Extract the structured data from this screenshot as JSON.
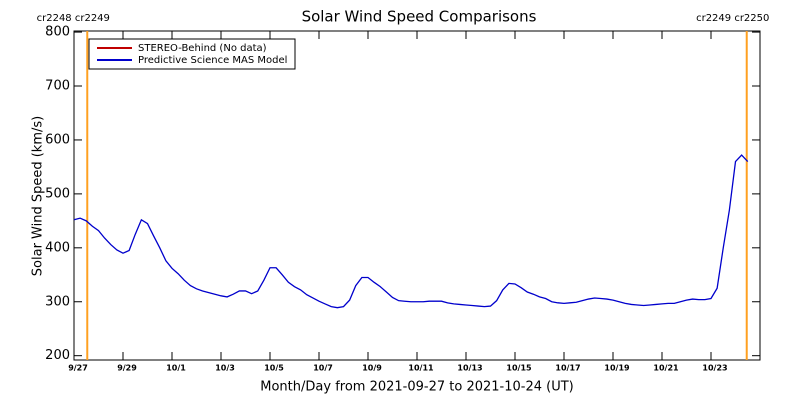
{
  "chart_data": {
    "type": "line",
    "title": "Solar Wind Speed Comparisons",
    "x_label": "Month/Day from 2021-09-27 to 2021-10-24 (UT)",
    "y_label": "Solar Wind Speed (km/s)",
    "xlim": [
      "2021-09-27T00:00",
      "2021-10-25T00:00"
    ],
    "ylim": [
      192,
      802
    ],
    "yticks": [
      200,
      300,
      400,
      500,
      600,
      700,
      800
    ],
    "xticks": [
      {
        "value": "2021-09-27T00:00",
        "label": "9/27"
      },
      {
        "value": "2021-09-29T00:00",
        "label": "9/29"
      },
      {
        "value": "2021-10-01T00:00",
        "label": "10/1"
      },
      {
        "value": "2021-10-03T00:00",
        "label": "10/3"
      },
      {
        "value": "2021-10-05T00:00",
        "label": "10/5"
      },
      {
        "value": "2021-10-07T00:00",
        "label": "10/7"
      },
      {
        "value": "2021-10-09T00:00",
        "label": "10/9"
      },
      {
        "value": "2021-10-11T00:00",
        "label": "10/11"
      },
      {
        "value": "2021-10-13T00:00",
        "label": "10/13"
      },
      {
        "value": "2021-10-15T00:00",
        "label": "10/15"
      },
      {
        "value": "2021-10-17T00:00",
        "label": "10/17"
      },
      {
        "value": "2021-10-19T00:00",
        "label": "10/19"
      },
      {
        "value": "2021-10-21T00:00",
        "label": "10/21"
      },
      {
        "value": "2021-10-23T00:00",
        "label": "10/23"
      }
    ],
    "annotations": [
      {
        "x": "2021-09-27T13:00",
        "label": "cr2248 cr2249",
        "color": "#ffa020"
      },
      {
        "x": "2021-10-24T11:00",
        "label": "cr2249 cr2250",
        "color": "#ffa020"
      }
    ],
    "legend": "upper left",
    "x": [
      "2021-09-27T00:00",
      "2021-09-27T06:00",
      "2021-09-27T12:00",
      "2021-09-27T18:00",
      "2021-09-28T00:00",
      "2021-09-28T06:00",
      "2021-09-28T12:00",
      "2021-09-28T18:00",
      "2021-09-29T00:00",
      "2021-09-29T06:00",
      "2021-09-29T12:00",
      "2021-09-29T18:00",
      "2021-09-30T00:00",
      "2021-09-30T06:00",
      "2021-09-30T12:00",
      "2021-09-30T18:00",
      "2021-10-01T00:00",
      "2021-10-01T06:00",
      "2021-10-01T12:00",
      "2021-10-01T18:00",
      "2021-10-02T00:00",
      "2021-10-02T06:00",
      "2021-10-02T12:00",
      "2021-10-02T18:00",
      "2021-10-03T00:00",
      "2021-10-03T06:00",
      "2021-10-03T12:00",
      "2021-10-03T18:00",
      "2021-10-04T00:00",
      "2021-10-04T06:00",
      "2021-10-04T12:00",
      "2021-10-04T18:00",
      "2021-10-05T00:00",
      "2021-10-05T06:00",
      "2021-10-05T12:00",
      "2021-10-05T18:00",
      "2021-10-06T00:00",
      "2021-10-06T06:00",
      "2021-10-06T12:00",
      "2021-10-06T18:00",
      "2021-10-07T00:00",
      "2021-10-07T06:00",
      "2021-10-07T12:00",
      "2021-10-07T18:00",
      "2021-10-08T00:00",
      "2021-10-08T06:00",
      "2021-10-08T12:00",
      "2021-10-08T18:00",
      "2021-10-09T00:00",
      "2021-10-09T06:00",
      "2021-10-09T12:00",
      "2021-10-09T18:00",
      "2021-10-10T00:00",
      "2021-10-10T06:00",
      "2021-10-10T12:00",
      "2021-10-10T18:00",
      "2021-10-11T00:00",
      "2021-10-11T06:00",
      "2021-10-11T12:00",
      "2021-10-11T18:00",
      "2021-10-12T00:00",
      "2021-10-12T06:00",
      "2021-10-12T12:00",
      "2021-10-12T18:00",
      "2021-10-13T00:00",
      "2021-10-13T06:00",
      "2021-10-13T12:00",
      "2021-10-13T18:00",
      "2021-10-14T00:00",
      "2021-10-14T06:00",
      "2021-10-14T12:00",
      "2021-10-14T18:00",
      "2021-10-15T00:00",
      "2021-10-15T06:00",
      "2021-10-15T12:00",
      "2021-10-15T18:00",
      "2021-10-16T00:00",
      "2021-10-16T06:00",
      "2021-10-16T12:00",
      "2021-10-16T18:00",
      "2021-10-17T00:00",
      "2021-10-17T06:00",
      "2021-10-17T12:00",
      "2021-10-17T18:00",
      "2021-10-18T00:00",
      "2021-10-18T06:00",
      "2021-10-18T12:00",
      "2021-10-18T18:00",
      "2021-10-19T00:00",
      "2021-10-19T06:00",
      "2021-10-19T12:00",
      "2021-10-19T18:00",
      "2021-10-20T00:00",
      "2021-10-20T06:00",
      "2021-10-20T12:00",
      "2021-10-20T18:00",
      "2021-10-21T00:00",
      "2021-10-21T06:00",
      "2021-10-21T12:00",
      "2021-10-21T18:00",
      "2021-10-22T00:00",
      "2021-10-22T06:00",
      "2021-10-22T12:00",
      "2021-10-22T18:00",
      "2021-10-23T00:00",
      "2021-10-23T06:00",
      "2021-10-23T12:00",
      "2021-10-23T18:00",
      "2021-10-24T00:00",
      "2021-10-24T06:00",
      "2021-10-24T12:00"
    ],
    "series": [
      {
        "name": "STEREO-Behind (No data)",
        "color": "#c00000",
        "values": [
          null,
          null,
          null,
          null,
          null,
          null,
          null,
          null,
          null,
          null,
          null,
          null,
          null,
          null,
          null,
          null,
          null,
          null,
          null,
          null,
          null,
          null,
          null,
          null,
          null,
          null,
          null,
          null,
          null,
          null,
          null,
          null,
          null,
          null,
          null,
          null,
          null,
          null,
          null,
          null,
          null,
          null,
          null,
          null,
          null,
          null,
          null,
          null,
          null,
          null,
          null,
          null,
          null,
          null,
          null,
          null,
          null,
          null,
          null,
          null,
          null,
          null,
          null,
          null,
          null,
          null,
          null,
          null,
          null,
          null,
          null,
          null,
          null,
          null,
          null,
          null,
          null,
          null,
          null,
          null,
          null,
          null,
          null,
          null,
          null,
          null,
          null,
          null,
          null,
          null,
          null,
          null,
          null,
          null,
          null,
          null,
          null,
          null,
          null,
          null,
          null,
          null,
          null,
          null,
          null,
          null,
          null,
          null,
          null,
          null,
          null
        ]
      },
      {
        "name": "Predictive Science MAS Model",
        "color": "#0000cc",
        "values": [
          452,
          455,
          450,
          440,
          432,
          418,
          406,
          396,
          390,
          395,
          425,
          452,
          445,
          422,
          400,
          376,
          362,
          352,
          340,
          330,
          324,
          320,
          317,
          314,
          311,
          309,
          314,
          320,
          320,
          315,
          320,
          340,
          363,
          363,
          350,
          336,
          328,
          322,
          313,
          307,
          301,
          296,
          291,
          289,
          291,
          303,
          330,
          345,
          345,
          336,
          328,
          318,
          308,
          302,
          301,
          300,
          300,
          300,
          301,
          301,
          301,
          298,
          296,
          295,
          294,
          293,
          292,
          291,
          292,
          302,
          322,
          334,
          333,
          326,
          318,
          314,
          309,
          306,
          300,
          298,
          297,
          298,
          299,
          302,
          305,
          307,
          306,
          305,
          303,
          300,
          297,
          295,
          294,
          293,
          294,
          295,
          296,
          297,
          297,
          300,
          303,
          305,
          304,
          304,
          306,
          325,
          400,
          470,
          560,
          572,
          560
        ]
      }
    ]
  }
}
